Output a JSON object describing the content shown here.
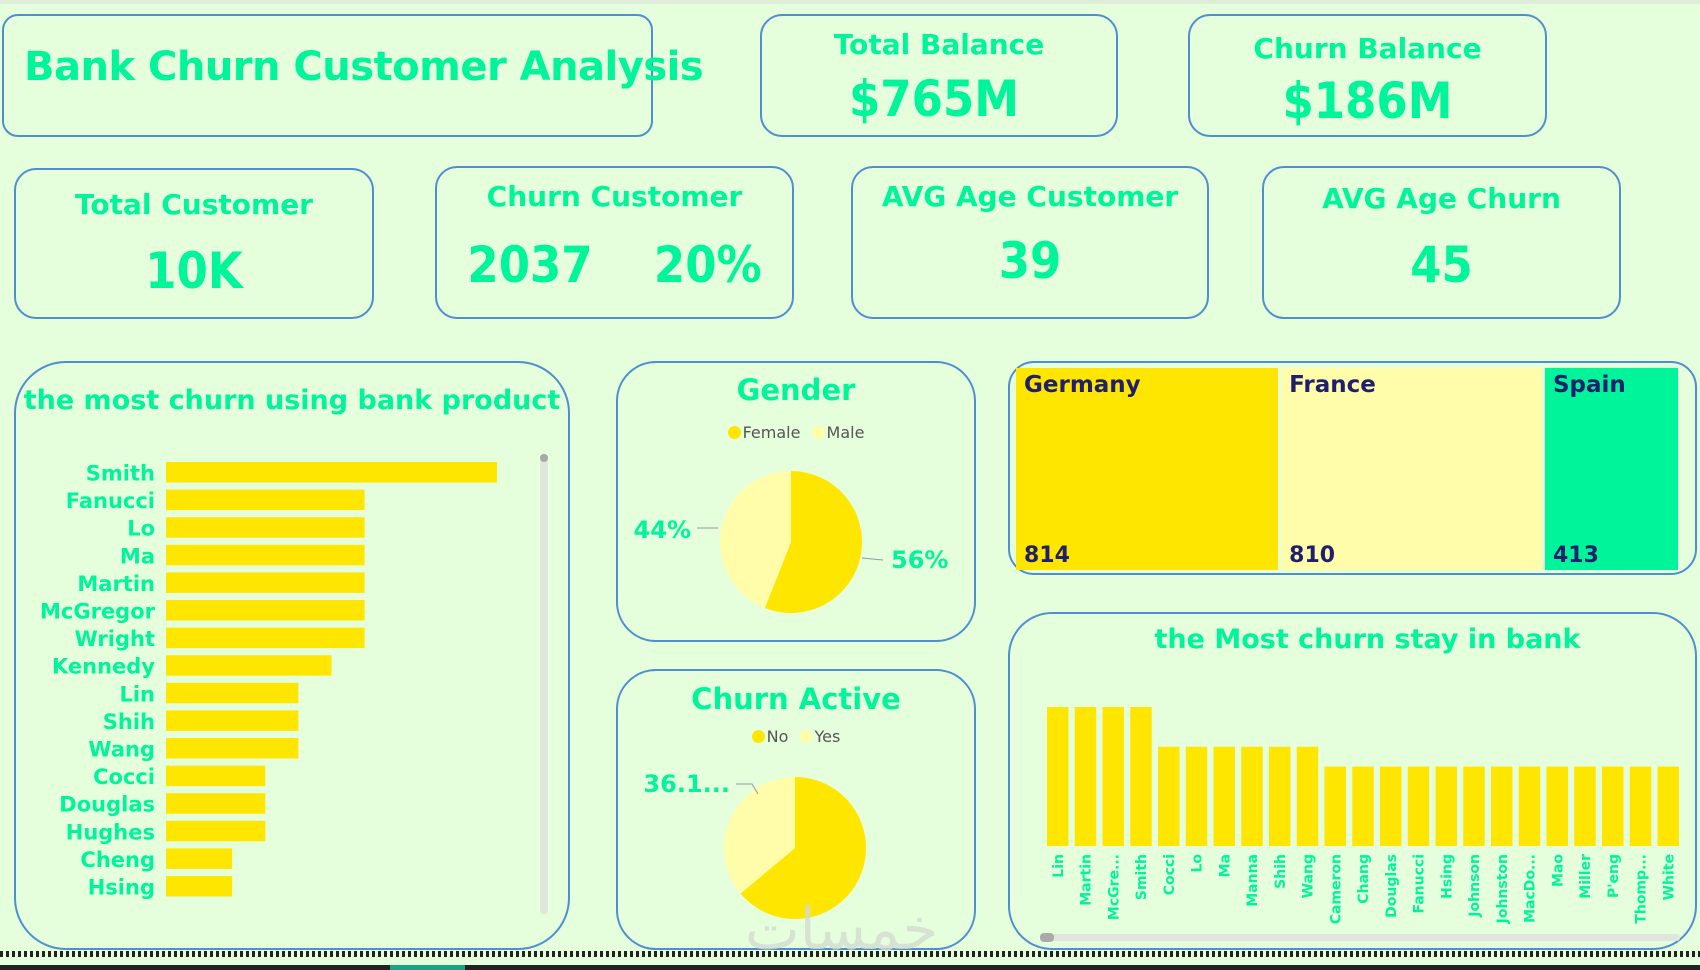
{
  "header": {
    "title": "Bank Churn Customer Analysis"
  },
  "kpis": {
    "total_balance": {
      "label": "Total Balance",
      "value": "$765M"
    },
    "churn_balance": {
      "label": "Churn Balance",
      "value": "$186M"
    },
    "total_customer": {
      "label": "Total Customer",
      "value": "10K"
    },
    "churn_customer": {
      "label": "Churn Customer",
      "value": "2037",
      "percent": "20%"
    },
    "avg_age_customer": {
      "label": "AVG Age Customer",
      "value": "39"
    },
    "avg_age_churn": {
      "label": "AVG Age Churn",
      "value": "45"
    }
  },
  "colors": {
    "accent_green": "#00f59a",
    "yellow": "#ffe600",
    "light_yellow": "#fffdaa",
    "border_blue": "#4f8fcf",
    "background": "#e5fedc",
    "treemap_text": "#1f1f6e"
  },
  "watermark": "خمسات",
  "chart_data": [
    {
      "id": "product_bar",
      "type": "bar",
      "orientation": "horizontal",
      "title": "the most churn using bank product",
      "categories": [
        "Smith",
        "Fanucci",
        "Lo",
        "Ma",
        "Martin",
        "McGregor",
        "Wright",
        "Kennedy",
        "Lin",
        "Shih",
        "Wang",
        "Cocci",
        "Douglas",
        "Hughes",
        "Cheng",
        "Hsing"
      ],
      "values": [
        10,
        6,
        6,
        6,
        6,
        6,
        6,
        5,
        4,
        4,
        4,
        3,
        3,
        3,
        2,
        2
      ],
      "xlabel": "",
      "ylabel": "",
      "xlim": [
        0,
        10
      ],
      "grid": false,
      "color": "#ffe600"
    },
    {
      "id": "gender_pie",
      "type": "pie",
      "title": "Gender",
      "legend": "top",
      "slices": [
        {
          "label": "Female",
          "value": 56,
          "display": "56%",
          "color": "#ffe600"
        },
        {
          "label": "Male",
          "value": 44,
          "display": "44%",
          "color": "#fffdaa"
        }
      ]
    },
    {
      "id": "churn_active_pie",
      "type": "pie",
      "title": "Churn Active",
      "legend": "top",
      "slices": [
        {
          "label": "No",
          "value": 63.9,
          "display": "",
          "color": "#ffe600"
        },
        {
          "label": "Yes",
          "value": 36.1,
          "display": "36.1...",
          "color": "#fffdaa"
        }
      ]
    },
    {
      "id": "geography_treemap",
      "type": "treemap",
      "title": "",
      "tiles": [
        {
          "label": "Germany",
          "value": 814,
          "color": "#ffe600"
        },
        {
          "label": "France",
          "value": 810,
          "color": "#fffdaa"
        },
        {
          "label": "Spain",
          "value": 413,
          "color": "#00f59a"
        }
      ]
    },
    {
      "id": "stay_column",
      "type": "bar",
      "orientation": "vertical",
      "title": "the Most churn stay in bank",
      "categories": [
        "Lin",
        "Martin",
        "McGre...",
        "Smith",
        "Cocci",
        "Lo",
        "Ma",
        "Manna",
        "Shih",
        "Wang",
        "Cameron",
        "Chang",
        "Douglas",
        "Fanucci",
        "Hsing",
        "Johnson",
        "Johnston",
        "MacDo...",
        "Mao",
        "Miller",
        "P'eng",
        "Thomp...",
        "White"
      ],
      "values": [
        7,
        7,
        7,
        7,
        5,
        5,
        5,
        5,
        5,
        5,
        4,
        4,
        4,
        4,
        4,
        4,
        4,
        4,
        4,
        4,
        4,
        4,
        4
      ],
      "xlabel": "",
      "ylabel": "",
      "ylim": [
        0,
        7
      ],
      "grid": false,
      "color": "#ffe600"
    }
  ]
}
